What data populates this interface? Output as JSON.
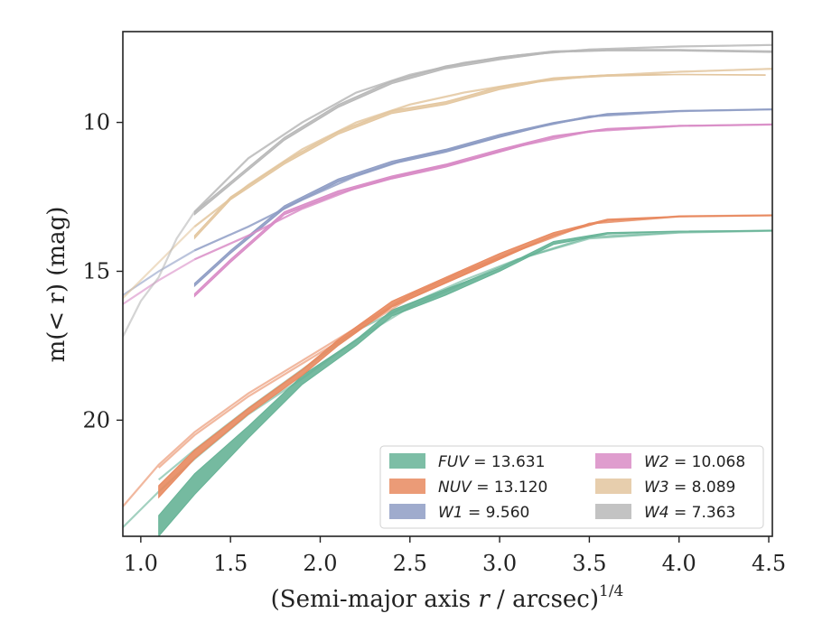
{
  "chart_data": {
    "type": "line",
    "xlabel": "(Semi-major axis r / arcsec)",
    "xlabel_var": "r",
    "xlabel_exp": "1/4",
    "ylabel": "m(< r) (mag)",
    "xlim": [
      0.9,
      4.52
    ],
    "ylim": [
      23.9,
      6.95
    ],
    "y_inverted": true,
    "grid": false,
    "legend_position": "lower-right",
    "x_ticks": [
      1.0,
      1.5,
      2.0,
      2.5,
      3.0,
      3.5,
      4.0,
      4.5
    ],
    "x_tick_labels": [
      "1.0",
      "1.5",
      "2.0",
      "2.5",
      "3.0",
      "3.5",
      "4.0",
      "4.5"
    ],
    "y_ticks": [
      10,
      15,
      20
    ],
    "y_tick_labels": [
      "10",
      "15",
      "20"
    ],
    "series": [
      {
        "name": "FUV = 13.631",
        "label_band": "FUV",
        "label_value": "13.631",
        "color": "#66b396",
        "band_upper": [
          [
            1.1,
            23.2
          ],
          [
            1.3,
            21.8
          ],
          [
            1.6,
            20.2
          ],
          [
            1.9,
            18.5
          ],
          [
            2.2,
            17.3
          ],
          [
            2.4,
            16.3
          ],
          [
            2.7,
            15.6
          ],
          [
            3.0,
            14.9
          ],
          [
            3.3,
            14.0
          ],
          [
            3.6,
            13.7
          ],
          [
            4.0,
            13.65
          ],
          [
            4.52,
            13.63
          ]
        ],
        "band_lower": [
          [
            1.1,
            23.9
          ],
          [
            1.3,
            22.5
          ],
          [
            1.6,
            20.6
          ],
          [
            1.9,
            18.8
          ],
          [
            2.2,
            17.5
          ],
          [
            2.4,
            16.5
          ],
          [
            2.7,
            15.8
          ],
          [
            3.0,
            15.0
          ],
          [
            3.3,
            14.1
          ],
          [
            3.6,
            13.75
          ],
          [
            4.0,
            13.66
          ],
          [
            4.52,
            13.64
          ]
        ],
        "curve_a": [
          [
            0.9,
            23.6
          ],
          [
            1.1,
            22.4
          ],
          [
            1.3,
            21.3
          ],
          [
            1.6,
            19.8
          ],
          [
            1.9,
            18.6
          ],
          [
            2.2,
            17.3
          ],
          [
            2.5,
            16.2
          ],
          [
            2.8,
            15.4
          ],
          [
            3.1,
            14.6
          ],
          [
            3.5,
            13.9
          ],
          [
            4.0,
            13.7
          ],
          [
            4.52,
            13.64
          ]
        ],
        "curve_b": [
          [
            1.1,
            22.0
          ],
          [
            1.3,
            21.0
          ],
          [
            1.6,
            19.6
          ],
          [
            1.9,
            18.3
          ],
          [
            2.2,
            17.0
          ],
          [
            2.5,
            16.1
          ],
          [
            2.8,
            15.3
          ],
          [
            3.1,
            14.6
          ],
          [
            3.5,
            13.85
          ],
          [
            4.0,
            13.68
          ],
          [
            4.52,
            13.63
          ]
        ]
      },
      {
        "name": "NUV = 13.120",
        "label_band": "NUV",
        "label_value": "13.120",
        "color": "#e8895f",
        "band_upper": [
          [
            1.1,
            22.2
          ],
          [
            1.3,
            21.0
          ],
          [
            1.6,
            19.6
          ],
          [
            1.9,
            18.3
          ],
          [
            2.1,
            17.3
          ],
          [
            2.4,
            16.0
          ],
          [
            2.7,
            15.2
          ],
          [
            3.0,
            14.4
          ],
          [
            3.3,
            13.7
          ],
          [
            3.6,
            13.25
          ],
          [
            4.0,
            13.15
          ],
          [
            4.52,
            13.12
          ]
        ],
        "band_lower": [
          [
            1.1,
            22.6
          ],
          [
            1.3,
            21.3
          ],
          [
            1.6,
            19.8
          ],
          [
            1.9,
            18.5
          ],
          [
            2.1,
            17.5
          ],
          [
            2.4,
            16.2
          ],
          [
            2.7,
            15.4
          ],
          [
            3.0,
            14.6
          ],
          [
            3.3,
            13.8
          ],
          [
            3.6,
            13.3
          ],
          [
            4.0,
            13.17
          ],
          [
            4.52,
            13.13
          ]
        ],
        "curve_a": [
          [
            0.9,
            22.9
          ],
          [
            1.1,
            21.5
          ],
          [
            1.3,
            20.4
          ],
          [
            1.6,
            19.1
          ],
          [
            1.9,
            18.0
          ],
          [
            2.2,
            16.9
          ],
          [
            2.5,
            15.8
          ],
          [
            2.8,
            15.0
          ],
          [
            3.1,
            14.3
          ],
          [
            3.5,
            13.4
          ],
          [
            4.0,
            13.15
          ],
          [
            4.52,
            13.12
          ]
        ],
        "curve_b": [
          [
            1.1,
            21.6
          ],
          [
            1.3,
            20.5
          ],
          [
            1.6,
            19.2
          ],
          [
            1.9,
            18.1
          ],
          [
            2.2,
            17.0
          ],
          [
            2.5,
            15.9
          ],
          [
            2.8,
            15.1
          ],
          [
            3.1,
            14.3
          ],
          [
            3.5,
            13.4
          ],
          [
            4.0,
            13.16
          ],
          [
            4.52,
            13.12
          ]
        ]
      },
      {
        "name": "W1 = 9.560",
        "label_band": "W1",
        "label_value": "9.560",
        "color": "#8e9cc4",
        "band_upper": [
          [
            1.3,
            15.4
          ],
          [
            1.5,
            14.3
          ],
          [
            1.8,
            12.8
          ],
          [
            2.1,
            11.9
          ],
          [
            2.4,
            11.3
          ],
          [
            2.7,
            10.9
          ],
          [
            3.0,
            10.4
          ],
          [
            3.3,
            10.0
          ],
          [
            3.6,
            9.7
          ],
          [
            4.0,
            9.6
          ],
          [
            4.52,
            9.56
          ]
        ],
        "band_lower": [
          [
            1.3,
            15.5
          ],
          [
            1.5,
            14.4
          ],
          [
            1.8,
            12.9
          ],
          [
            2.1,
            12.0
          ],
          [
            2.4,
            11.4
          ],
          [
            2.7,
            11.0
          ],
          [
            3.0,
            10.5
          ],
          [
            3.3,
            10.05
          ],
          [
            3.6,
            9.75
          ],
          [
            4.0,
            9.62
          ],
          [
            4.52,
            9.57
          ]
        ],
        "curve_a": [
          [
            0.9,
            15.8
          ],
          [
            1.1,
            15.0
          ],
          [
            1.3,
            14.3
          ],
          [
            1.6,
            13.5
          ],
          [
            1.9,
            12.6
          ],
          [
            2.2,
            11.8
          ],
          [
            2.5,
            11.2
          ],
          [
            2.8,
            10.8
          ],
          [
            3.1,
            10.3
          ],
          [
            3.5,
            9.8
          ],
          [
            4.0,
            9.62
          ],
          [
            4.52,
            9.56
          ]
        ],
        "curve_b": [
          [
            1.3,
            14.3
          ],
          [
            1.6,
            13.5
          ],
          [
            1.9,
            12.6
          ],
          [
            2.2,
            11.8
          ],
          [
            2.5,
            11.2
          ],
          [
            2.8,
            10.8
          ],
          [
            3.1,
            10.3
          ],
          [
            3.5,
            9.8
          ],
          [
            4.0,
            9.62
          ],
          [
            4.52,
            9.56
          ]
        ]
      },
      {
        "name": "W2 = 10.068",
        "label_band": "W2",
        "label_value": "10.068",
        "color": "#d98cc6",
        "band_upper": [
          [
            1.3,
            15.75
          ],
          [
            1.5,
            14.6
          ],
          [
            1.8,
            13.0
          ],
          [
            2.1,
            12.3
          ],
          [
            2.4,
            11.8
          ],
          [
            2.7,
            11.4
          ],
          [
            3.0,
            10.9
          ],
          [
            3.3,
            10.45
          ],
          [
            3.6,
            10.2
          ],
          [
            4.0,
            10.1
          ],
          [
            4.52,
            10.07
          ]
        ],
        "band_lower": [
          [
            1.3,
            15.85
          ],
          [
            1.5,
            14.7
          ],
          [
            1.8,
            13.1
          ],
          [
            2.1,
            12.4
          ],
          [
            2.4,
            11.9
          ],
          [
            2.7,
            11.5
          ],
          [
            3.0,
            11.0
          ],
          [
            3.3,
            10.5
          ],
          [
            3.6,
            10.25
          ],
          [
            4.0,
            10.12
          ],
          [
            4.52,
            10.08
          ]
        ],
        "curve_a": [
          [
            0.9,
            16.1
          ],
          [
            1.1,
            15.3
          ],
          [
            1.3,
            14.6
          ],
          [
            1.6,
            13.8
          ],
          [
            1.9,
            12.9
          ],
          [
            2.2,
            12.2
          ],
          [
            2.5,
            11.7
          ],
          [
            2.8,
            11.3
          ],
          [
            3.1,
            10.8
          ],
          [
            3.5,
            10.3
          ],
          [
            4.0,
            10.12
          ],
          [
            4.52,
            10.07
          ]
        ],
        "curve_b": [
          [
            1.3,
            14.6
          ],
          [
            1.6,
            13.8
          ],
          [
            1.9,
            12.9
          ],
          [
            2.2,
            12.2
          ],
          [
            2.5,
            11.7
          ],
          [
            2.8,
            11.3
          ],
          [
            3.1,
            10.8
          ],
          [
            3.5,
            10.3
          ],
          [
            4.0,
            10.12
          ],
          [
            4.52,
            10.07
          ]
        ]
      },
      {
        "name": "W3 = 8.089",
        "label_band": "W3",
        "label_value": "8.089",
        "color": "#e3c69f",
        "band_upper": [
          [
            1.3,
            13.8
          ],
          [
            1.5,
            12.5
          ],
          [
            1.8,
            11.3
          ],
          [
            2.1,
            10.3
          ],
          [
            2.4,
            9.6
          ],
          [
            2.7,
            9.3
          ],
          [
            3.0,
            8.8
          ],
          [
            3.3,
            8.5
          ],
          [
            3.6,
            8.4
          ],
          [
            4.0,
            8.38
          ],
          [
            4.48,
            8.4
          ]
        ],
        "band_lower": [
          [
            1.3,
            13.9
          ],
          [
            1.5,
            12.6
          ],
          [
            1.8,
            11.4
          ],
          [
            2.1,
            10.4
          ],
          [
            2.4,
            9.7
          ],
          [
            2.7,
            9.4
          ],
          [
            3.0,
            8.9
          ],
          [
            3.3,
            8.55
          ],
          [
            3.6,
            8.45
          ],
          [
            4.0,
            8.4
          ],
          [
            4.48,
            8.42
          ]
        ],
        "curve_a": [
          [
            0.9,
            15.9
          ],
          [
            1.1,
            14.7
          ],
          [
            1.3,
            13.5
          ],
          [
            1.6,
            12.1
          ],
          [
            1.9,
            10.9
          ],
          [
            2.2,
            10.0
          ],
          [
            2.5,
            9.4
          ],
          [
            2.8,
            9.0
          ],
          [
            3.1,
            8.7
          ],
          [
            3.5,
            8.45
          ],
          [
            4.0,
            8.3
          ],
          [
            4.52,
            8.2
          ]
        ],
        "curve_b": [
          [
            1.3,
            13.5
          ],
          [
            1.6,
            12.1
          ],
          [
            1.9,
            10.9
          ],
          [
            2.2,
            10.0
          ],
          [
            2.5,
            9.4
          ],
          [
            2.8,
            9.0
          ],
          [
            3.1,
            8.7
          ],
          [
            3.5,
            8.45
          ],
          [
            4.0,
            8.3
          ],
          [
            4.52,
            8.2
          ]
        ]
      },
      {
        "name": "W4 = 7.363",
        "label_band": "W4",
        "label_value": "7.363",
        "color": "#b8b8b8",
        "band_upper": [
          [
            1.3,
            13.0
          ],
          [
            1.5,
            12.0
          ],
          [
            1.8,
            10.5
          ],
          [
            2.1,
            9.4
          ],
          [
            2.4,
            8.6
          ],
          [
            2.7,
            8.1
          ],
          [
            3.0,
            7.8
          ],
          [
            3.3,
            7.6
          ],
          [
            3.6,
            7.55
          ],
          [
            4.0,
            7.55
          ],
          [
            4.52,
            7.6
          ]
        ],
        "band_lower": [
          [
            1.3,
            13.1
          ],
          [
            1.5,
            12.1
          ],
          [
            1.8,
            10.6
          ],
          [
            2.1,
            9.5
          ],
          [
            2.4,
            8.7
          ],
          [
            2.7,
            8.2
          ],
          [
            3.0,
            7.9
          ],
          [
            3.3,
            7.65
          ],
          [
            3.6,
            7.6
          ],
          [
            4.0,
            7.6
          ],
          [
            4.52,
            7.65
          ]
        ],
        "curve_a": [
          [
            0.9,
            17.2
          ],
          [
            1.0,
            16.0
          ],
          [
            1.1,
            15.2
          ],
          [
            1.2,
            13.9
          ],
          [
            1.3,
            13.0
          ],
          [
            1.6,
            11.2
          ],
          [
            1.9,
            10.0
          ],
          [
            2.2,
            9.0
          ],
          [
            2.5,
            8.4
          ],
          [
            2.8,
            8.0
          ],
          [
            3.1,
            7.75
          ],
          [
            3.5,
            7.55
          ],
          [
            4.0,
            7.45
          ],
          [
            4.52,
            7.4
          ]
        ],
        "curve_b": [
          [
            1.3,
            13.0
          ],
          [
            1.6,
            11.2
          ],
          [
            1.9,
            10.0
          ],
          [
            2.2,
            9.0
          ],
          [
            2.5,
            8.4
          ],
          [
            2.8,
            8.0
          ],
          [
            3.1,
            7.75
          ],
          [
            3.5,
            7.55
          ],
          [
            4.0,
            7.45
          ],
          [
            4.52,
            7.4
          ]
        ]
      }
    ]
  }
}
